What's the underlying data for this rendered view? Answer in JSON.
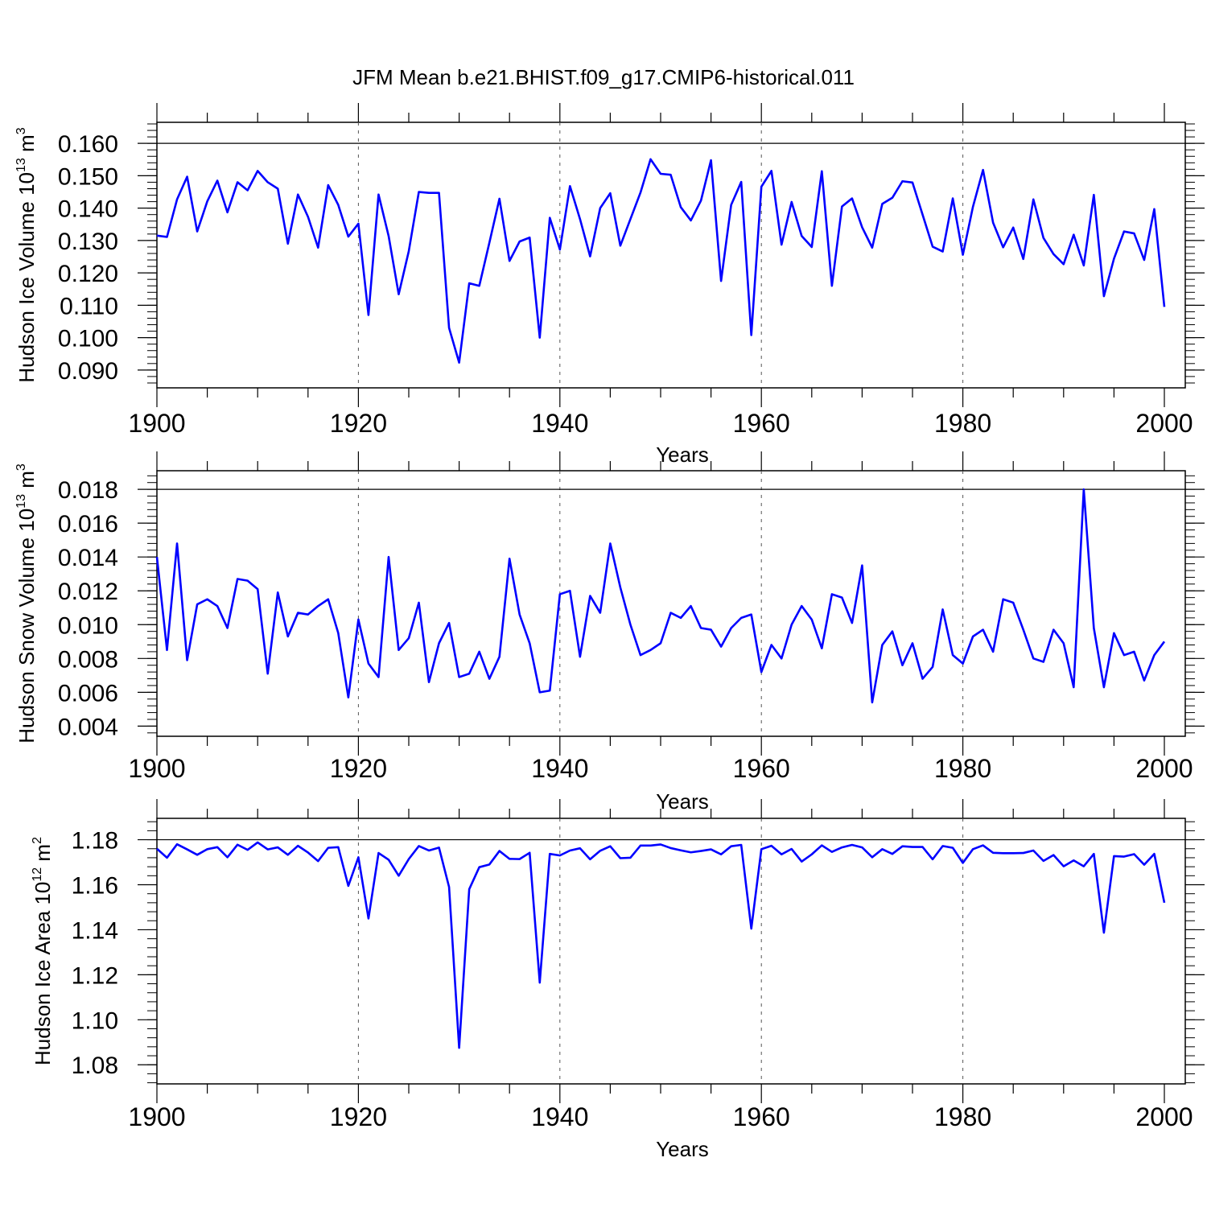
{
  "title": "JFM Mean b.e21.BHIST.f09_g17.CMIP6-historical.011",
  "colors": {
    "line": "#0000ff",
    "axis": "#000000",
    "grid": "#555555"
  },
  "chart_data": [
    {
      "type": "line",
      "name": "ice-volume",
      "ylabel": {
        "main": "Hudson Ice Volume 10",
        "exp": "13",
        "unit": " m",
        "unit_exp": "3"
      },
      "xlabel": "Years",
      "xlim": [
        1900,
        2000
      ],
      "ylim": [
        0.0845,
        0.1665
      ],
      "xticks": [
        "1900",
        "1920",
        "1940",
        "1960",
        "1980",
        "2000"
      ],
      "yticks": [
        "0.090",
        "0.100",
        "0.110",
        "0.120",
        "0.130",
        "0.140",
        "0.150",
        "0.160"
      ],
      "ytick_values": [
        0.09,
        0.1,
        0.11,
        0.12,
        0.13,
        0.14,
        0.15,
        0.16
      ],
      "yminor_step": 0.002,
      "ref_line": 0.16,
      "x_start": 1900,
      "values": [
        0.1315,
        0.1311,
        0.1427,
        0.1497,
        0.1328,
        0.1421,
        0.1485,
        0.1387,
        0.148,
        0.1455,
        0.1515,
        0.148,
        0.146,
        0.129,
        0.1442,
        0.1373,
        0.1278,
        0.1471,
        0.141,
        0.1312,
        0.1352,
        0.107,
        0.1442,
        0.1314,
        0.1134,
        0.1267,
        0.145,
        0.1447,
        0.1447,
        0.103,
        0.0923,
        0.1168,
        0.116,
        0.1293,
        0.1429,
        0.1237,
        0.1297,
        0.1309,
        0.1,
        0.137,
        0.1272,
        0.1468,
        0.1366,
        0.1251,
        0.14,
        0.1446,
        0.1284,
        0.1366,
        0.1448,
        0.1551,
        0.1506,
        0.1503,
        0.1403,
        0.1362,
        0.1423,
        0.1548,
        0.1175,
        0.141,
        0.1481,
        0.1008,
        0.1466,
        0.1515,
        0.1287,
        0.1419,
        0.1314,
        0.128,
        0.1514,
        0.116,
        0.1405,
        0.143,
        0.1341,
        0.1278,
        0.1413,
        0.1432,
        0.1483,
        0.1479,
        0.138,
        0.1281,
        0.1266,
        0.143,
        0.1256,
        0.1404,
        0.1518,
        0.1355,
        0.1279,
        0.134,
        0.1243,
        0.1427,
        0.1308,
        0.1258,
        0.1227,
        0.1318,
        0.1223,
        0.1441,
        0.1128,
        0.1244,
        0.1328,
        0.1322,
        0.124,
        0.1397,
        0.1095
      ]
    },
    {
      "type": "line",
      "name": "snow-volume",
      "ylabel": {
        "main": "Hudson Snow Volume 10",
        "exp": "13",
        "unit": " m",
        "unit_exp": "3"
      },
      "xlabel": "Years",
      "xlim": [
        1900,
        2000
      ],
      "ylim": [
        0.0034,
        0.0191
      ],
      "xticks": [
        "1900",
        "1920",
        "1940",
        "1960",
        "1980",
        "2000"
      ],
      "yticks": [
        "0.004",
        "0.006",
        "0.008",
        "0.010",
        "0.012",
        "0.014",
        "0.016",
        "0.018"
      ],
      "ytick_values": [
        0.004,
        0.006,
        0.008,
        0.01,
        0.012,
        0.014,
        0.016,
        0.018
      ],
      "yminor_step": 0.0004,
      "ref_line": 0.018,
      "x_start": 1900,
      "values": [
        0.014,
        0.0085,
        0.0148,
        0.0079,
        0.0112,
        0.0115,
        0.0111,
        0.0098,
        0.0127,
        0.0126,
        0.0121,
        0.0071,
        0.0119,
        0.0093,
        0.0107,
        0.0106,
        0.0111,
        0.0115,
        0.0095,
        0.0057,
        0.0103,
        0.0077,
        0.0069,
        0.014,
        0.0085,
        0.0092,
        0.0113,
        0.0066,
        0.0089,
        0.0101,
        0.0069,
        0.0071,
        0.0084,
        0.0068,
        0.0081,
        0.0139,
        0.0106,
        0.0089,
        0.006,
        0.0061,
        0.0118,
        0.012,
        0.0081,
        0.0117,
        0.0107,
        0.0148,
        0.0122,
        0.01,
        0.0082,
        0.0085,
        0.0089,
        0.0107,
        0.0104,
        0.0111,
        0.0098,
        0.0097,
        0.0087,
        0.0098,
        0.0104,
        0.0106,
        0.0072,
        0.0088,
        0.008,
        0.01,
        0.0111,
        0.0103,
        0.0086,
        0.0118,
        0.0116,
        0.0101,
        0.0135,
        0.0054,
        0.0088,
        0.0096,
        0.0076,
        0.0089,
        0.0068,
        0.0075,
        0.0109,
        0.0082,
        0.0077,
        0.0093,
        0.0097,
        0.0084,
        0.0115,
        0.0113,
        0.0097,
        0.008,
        0.0078,
        0.0097,
        0.0089,
        0.0063,
        0.018,
        0.0098,
        0.0063,
        0.0095,
        0.0082,
        0.0084,
        0.0067,
        0.0082,
        0.009
      ]
    },
    {
      "type": "line",
      "name": "ice-area",
      "ylabel": {
        "main": "Hudson Ice Area 10",
        "exp": "12",
        "unit": " m",
        "unit_exp": "2"
      },
      "xlabel": "Years",
      "xlim": [
        1900,
        2000
      ],
      "ylim": [
        1.0715,
        1.1895
      ],
      "xticks": [
        "1900",
        "1920",
        "1940",
        "1960",
        "1980",
        "2000"
      ],
      "yticks": [
        "1.08",
        "1.10",
        "1.12",
        "1.14",
        "1.16",
        "1.18"
      ],
      "ytick_values": [
        1.08,
        1.1,
        1.12,
        1.14,
        1.16,
        1.18
      ],
      "yminor_step": 0.004,
      "ref_line": 1.18,
      "x_start": 1900,
      "values": [
        1.176,
        1.172,
        1.178,
        1.1757,
        1.1733,
        1.1758,
        1.1767,
        1.1722,
        1.1778,
        1.1755,
        1.1788,
        1.1757,
        1.1766,
        1.1733,
        1.1773,
        1.1743,
        1.1705,
        1.1764,
        1.1767,
        1.1595,
        1.1722,
        1.145,
        1.1741,
        1.1711,
        1.164,
        1.1714,
        1.1772,
        1.1752,
        1.1765,
        1.159,
        1.0875,
        1.158,
        1.1678,
        1.169,
        1.175,
        1.1715,
        1.1714,
        1.1742,
        1.1165,
        1.1737,
        1.173,
        1.1752,
        1.1762,
        1.1713,
        1.1751,
        1.1771,
        1.1718,
        1.172,
        1.1774,
        1.1774,
        1.1779,
        1.1763,
        1.1753,
        1.1744,
        1.175,
        1.1757,
        1.1735,
        1.1771,
        1.1777,
        1.1405,
        1.1758,
        1.1773,
        1.1735,
        1.1759,
        1.1703,
        1.1735,
        1.1775,
        1.1746,
        1.1766,
        1.1777,
        1.1766,
        1.1722,
        1.1758,
        1.1737,
        1.1771,
        1.1768,
        1.1768,
        1.1713,
        1.1772,
        1.1764,
        1.1697,
        1.1758,
        1.1775,
        1.1742,
        1.174,
        1.174,
        1.1741,
        1.1752,
        1.1706,
        1.1732,
        1.1682,
        1.1708,
        1.1682,
        1.1737,
        1.1387,
        1.1727,
        1.1725,
        1.1736,
        1.1689,
        1.1737,
        1.152
      ]
    }
  ]
}
